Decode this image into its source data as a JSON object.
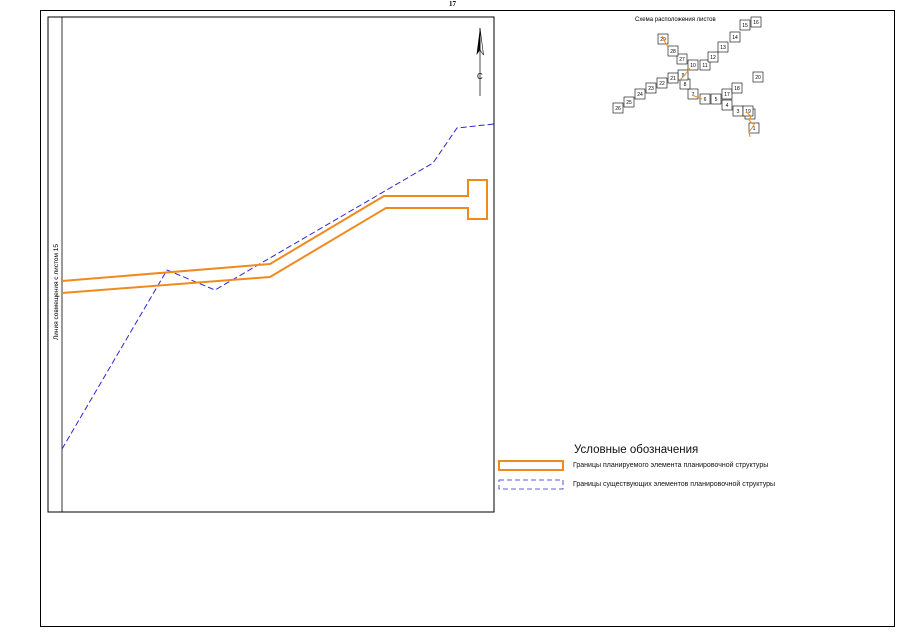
{
  "page_number": "17",
  "match_line_label": "Линия совмещения с листом 15",
  "north_arrow": {
    "letter": "С",
    "icon": "north-arrow-icon"
  },
  "key_map": {
    "title": "Схема расположения листов",
    "sheets": [
      "1",
      "2",
      "3",
      "4",
      "5",
      "6",
      "7",
      "8",
      "9",
      "10",
      "11",
      "12",
      "13",
      "14",
      "15",
      "16",
      "17",
      "18",
      "19",
      "20",
      "21",
      "22",
      "23",
      "24",
      "25",
      "26",
      "27",
      "28",
      "29"
    ],
    "current_sheet": "17"
  },
  "legend": {
    "title": "Условные обозначения",
    "items": [
      {
        "label": "Границы планируемого элемента планировочной структуры",
        "color": "#f08a1e",
        "style": "double-solid"
      },
      {
        "label": "Границы существующих элементов планировочной структуры",
        "color": "#2a2ad4",
        "style": "dashed"
      }
    ]
  },
  "colors": {
    "planned_boundary": "#f08a1e",
    "existing_boundary": "#2a2ad4",
    "frame": "#000000"
  }
}
